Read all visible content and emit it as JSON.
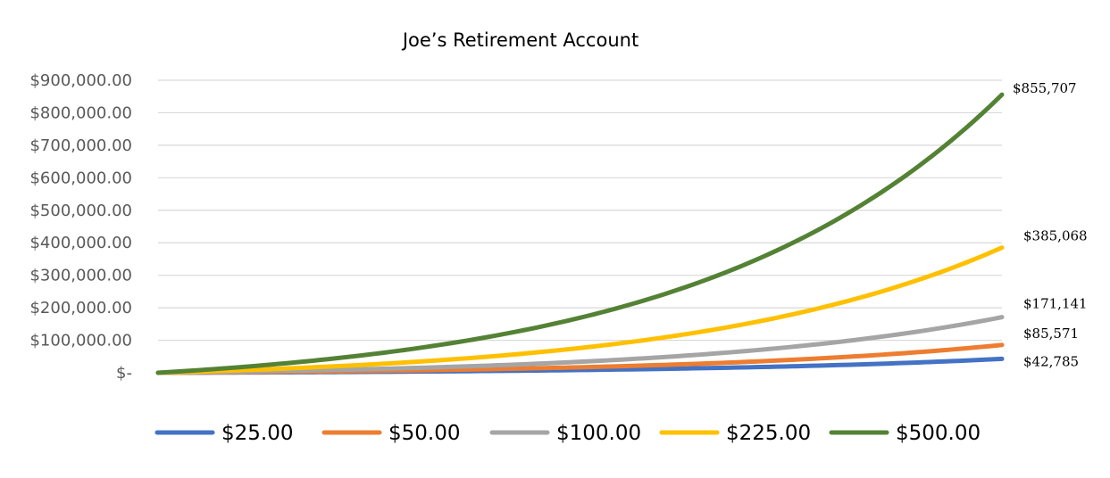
{
  "chart_data": {
    "type": "line",
    "title": "Joe’s Retirement Account",
    "xlabel": "",
    "ylabel": "",
    "ylim": [
      0,
      900000
    ],
    "y_tick_labels": [
      "$-",
      "$100,000.00",
      "$200,000.00",
      "$300,000.00",
      "$400,000.00",
      "$500,000.00",
      "$600,000.00",
      "$700,000.00",
      "$800,000.00",
      "$900,000.00"
    ],
    "grid": true,
    "legend_position": "bottom",
    "series": [
      {
        "name": "$25.00",
        "color": "#4472C4",
        "final_value": 42785,
        "end_label": "$42,785"
      },
      {
        "name": "$50.00",
        "color": "#ED7D31",
        "final_value": 85571,
        "end_label": "$85,571"
      },
      {
        "name": "$100.00",
        "color": "#A5A5A5",
        "final_value": 171141,
        "end_label": "$171,141"
      },
      {
        "name": "$225.00",
        "color": "#FFC000",
        "final_value": 385068,
        "end_label": "$385,068"
      },
      {
        "name": "$500.00",
        "color": "#548235",
        "final_value": 855707,
        "end_label": "$855,707"
      }
    ]
  }
}
